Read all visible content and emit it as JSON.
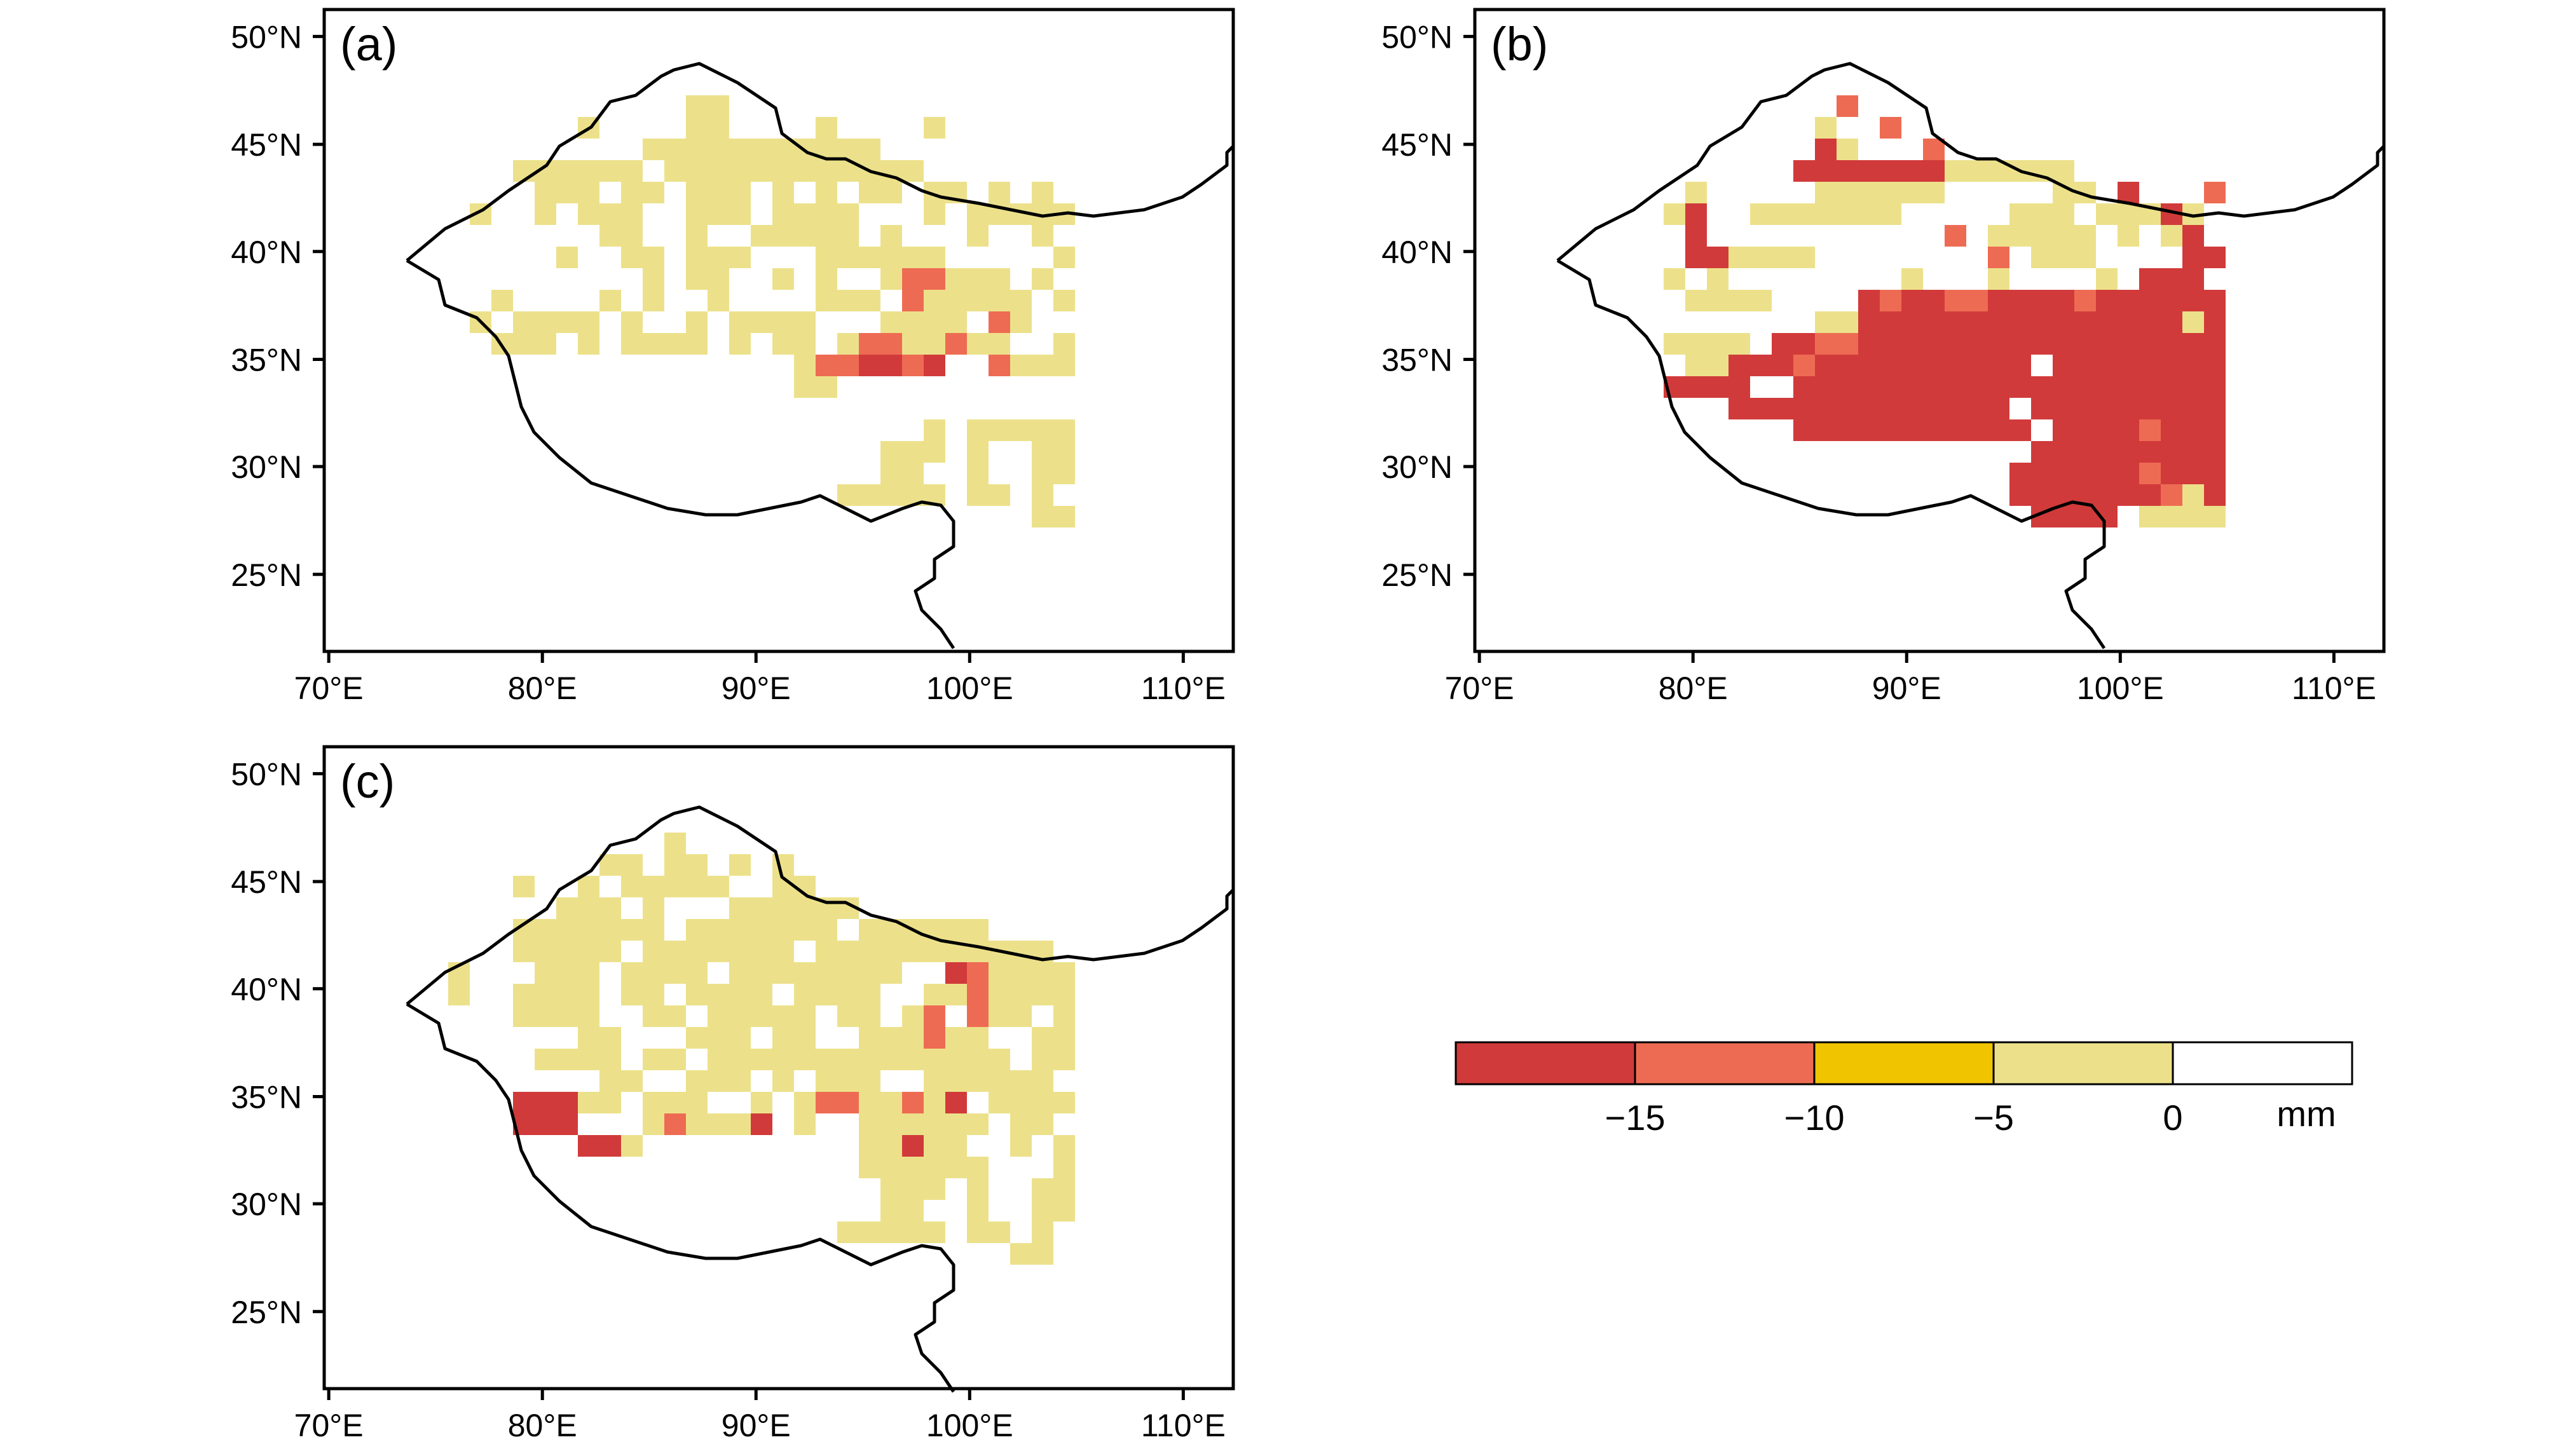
{
  "figure": {
    "panels": [
      {
        "label": "(a)",
        "grid": [
          "...........AA................",
          "......A....AA....A....A......",
          ".........AAAAAAAAAAA.........",
          "...AAAAAA.AAAAAAAAAAAA.......",
          "....AAA.AA.AAA.A.A.AA.AA.A.A.",
          ".A..A.AAA..AAA.AAAA...A.AAAAA",
          ".......AA..A..AAAAA.A...A..A.",
          ".....A..AA.AAA...AAAAAA.....A",
          ".........A.AA..A.A..ACCAAA.A.",
          "..A....A.A..A....AAA.CAAAAA.A",
          ".A.AAAA.A..A.AAAA...AAAA.CA..",
          "..AAA.A.AAAA.A.AA.ACCAACAA..A",
          "................ACCBBCB..CAAA",
          "................AA...........",
          ".............................",
          "......................A.AAAAA",
          "....................AAA.A..AA",
          "....................AA..A..AA",
          "..................AAAAA.AA.A.",
          "...........................AA"
        ]
      },
      {
        "label": "(b)",
        "grid": [
          "...........C.................",
          "..........A..C...............",
          "..........BA...C.............",
          ".........BBBBBBBAAAAAA.......",
          "....A.....AAAAAA.....AA.B...C",
          "...AB..AAAAAAA.....AAA.AAABA.",
          "....B...........C.AAAAA.A.AB.",
          "....BBAAAA........C.AAA....BB",
          "...A.A........A...A....A.BBB.",
          "....AAAA....BCBBCCBBBBCBBBBBB",
          "..........AABBBBBBBBBBBBBBBAB",
          "...AAAA.BBCCBBBBBBBBBBBBBBBBB",
          "....AABBBCBBBBBBBBBB.BBBBBBBB",
          "...BBBB..BBBBBBBBBBBBBBBBBBBB",
          "......BBBBBBBBBBBBB.BBBBBBBBB",
          ".........BBBBBBBBBBB.BBBBCBBB",
          "....................BBBBBBBBB",
          "...................BBBBBBCBBB",
          "...................BBBBBBBCAB",
          "....................BBBB.AAAA"
        ]
      },
      {
        "label": "(c)",
        "grid": [
          "..........A..................",
          ".......AA.AA.A.A.............",
          "...A..A.AAAAA..AA............",
          ".....AAA.A...AAAAAA..........",
          "...AAAAAAA.AAAAAAA.AAAAAA....",
          "...AAAAA.AAAAAAA.AAAAAAAAAAA.",
          "A...AAA.AAAA.AAAAAAAA..BCAAAA",
          "A..AAAA.AA.AAAA.AAAA..AACAAAA",
          "...AAAA..AA.AAAAA.AA.AC.CAA.A",
          "......AA...AAA.AA..AAACAA..AA",
          "....AAAA.AA.AAAAAAAAAAAAAA.AA",
          ".......AA..AAA.A.AAA..AAAAAA.",
          "...BBBAA.AAA..A.ACCAACAB.AAAA",
          "...BBB...ACAAAB.A..AAAAAA.AA.",
          "......BBA..........AABAA..A.A",
          "...................AAAAAA...A",
          "....................AAA.A..AA",
          "....................AA..A..AA",
          "..................AAAAA.AA.A.",
          "..........................AA."
        ]
      }
    ],
    "x_ticks": [
      "70°E",
      "80°E",
      "90°E",
      "100°E",
      "110°E"
    ],
    "y_ticks": [
      "25°N",
      "30°N",
      "35°N",
      "40°N",
      "45°N",
      "50°N"
    ],
    "colorbar": {
      "levels": [
        "<−15",
        "−15 to −10",
        "−10 to −5",
        "−5 to 0",
        ">0"
      ],
      "colors": [
        "#d13a3a",
        "#ee6b53",
        "#f0c500",
        "#ece18a",
        "#ffffff"
      ],
      "tick_labels": [
        "−15",
        "−10",
        "−5",
        "0"
      ],
      "unit": "mm"
    },
    "palette_key": {
      "A": "#ece18a",
      "B": "#d13a3a",
      "C": "#ee6b53",
      "D": "#f0c500"
    }
  }
}
